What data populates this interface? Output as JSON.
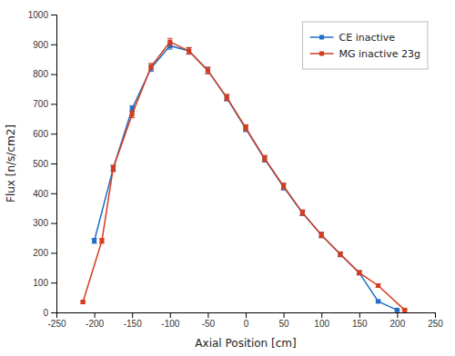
{
  "chart_data": {
    "type": "line",
    "xlabel": "Axial Position [cm]",
    "ylabel": "Flux [n/s/cm2]",
    "xlim": [
      -250,
      250
    ],
    "ylim": [
      0,
      1000
    ],
    "xticks": [
      -250,
      -200,
      -150,
      -100,
      -50,
      0,
      50,
      100,
      150,
      200,
      250
    ],
    "yticks": [
      0,
      100,
      200,
      300,
      400,
      500,
      600,
      700,
      800,
      900,
      1000
    ],
    "legend": "upper right",
    "series": [
      {
        "name": "CE inactive",
        "color": "#1f6fc5",
        "marker": "square",
        "line_style": "solid",
        "x": [
          -200,
          -175,
          -150,
          -125,
          -100,
          -75,
          -50,
          -25,
          0,
          25,
          50,
          75,
          100,
          125,
          150,
          175,
          200
        ],
        "values": [
          240,
          483,
          684,
          820,
          895,
          878,
          812,
          720,
          617,
          515,
          421,
          334,
          260,
          195,
          133,
          37,
          8
        ],
        "errors": [
          8,
          10,
          10,
          11,
          11,
          11,
          11,
          10,
          10,
          10,
          10,
          9,
          9,
          8,
          7,
          4,
          2
        ]
      },
      {
        "name": "MG inactive 23g",
        "color": "#d63b1f",
        "marker": "square",
        "line_style": "solid",
        "x": [
          -215,
          -190,
          -175,
          -150,
          -125,
          -100,
          -75,
          -50,
          -25,
          0,
          25,
          50,
          75,
          100,
          125,
          150,
          175,
          210
        ],
        "values": [
          35,
          240,
          484,
          665,
          825,
          908,
          878,
          812,
          722,
          620,
          517,
          424,
          335,
          260,
          195,
          133,
          90,
          8
        ],
        "errors": [
          4,
          8,
          10,
          11,
          11,
          12,
          11,
          11,
          10,
          10,
          10,
          10,
          9,
          9,
          8,
          7,
          6,
          2
        ]
      }
    ]
  }
}
